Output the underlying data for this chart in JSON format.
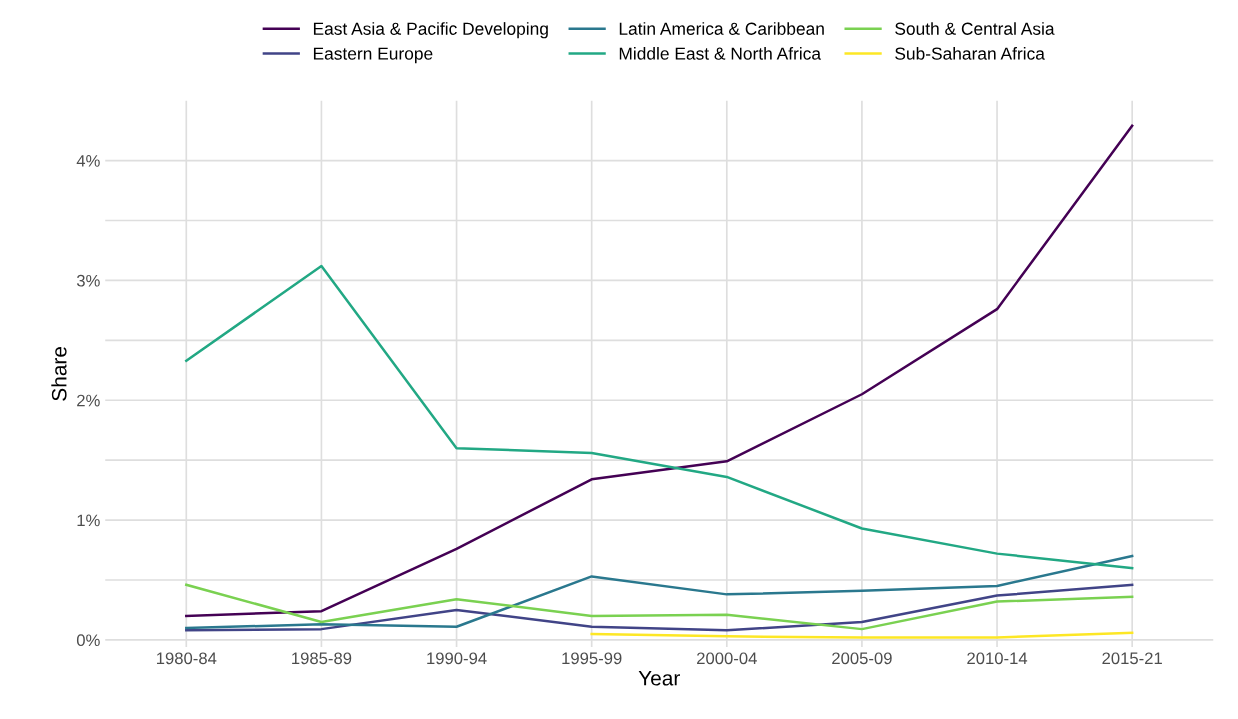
{
  "chart_data": {
    "type": "line",
    "xlabel": "Year",
    "ylabel": "Share",
    "categories": [
      "1980-84",
      "1985-89",
      "1990-94",
      "1995-99",
      "2000-04",
      "2005-09",
      "2010-14",
      "2015-21"
    ],
    "series": [
      {
        "name": "East Asia & Pacific Developing",
        "color": "#440154",
        "values": [
          0.2,
          0.24,
          0.76,
          1.34,
          1.49,
          2.05,
          2.76,
          4.29
        ]
      },
      {
        "name": "Eastern Europe",
        "color": "#414487",
        "values": [
          0.08,
          0.09,
          0.25,
          0.11,
          0.08,
          0.15,
          0.37,
          0.46
        ]
      },
      {
        "name": "Latin America & Caribbean",
        "color": "#2a788e",
        "values": [
          0.1,
          0.13,
          0.11,
          0.53,
          0.38,
          0.41,
          0.45,
          0.7
        ]
      },
      {
        "name": "Middle East & North Africa",
        "color": "#22a884",
        "values": [
          2.33,
          3.12,
          1.6,
          1.56,
          1.36,
          0.93,
          0.72,
          0.6
        ]
      },
      {
        "name": "South & Central Asia",
        "color": "#7ad151",
        "values": [
          0.46,
          0.15,
          0.34,
          0.2,
          0.21,
          0.09,
          0.32,
          0.36
        ]
      },
      {
        "name": "Sub-Saharan Africa",
        "color": "#fde725",
        "values": [
          null,
          null,
          null,
          0.05,
          0.03,
          0.02,
          0.02,
          0.06
        ]
      }
    ],
    "ylim": [
      -0.06,
      4.5
    ],
    "yticks": [
      {
        "value": 0,
        "label": "0%"
      },
      {
        "value": 0.5,
        "label": null
      },
      {
        "value": 1,
        "label": "1%"
      },
      {
        "value": 1.5,
        "label": null
      },
      {
        "value": 2,
        "label": "2%"
      },
      {
        "value": 2.5,
        "label": null
      },
      {
        "value": 3,
        "label": "3%"
      },
      {
        "value": 3.5,
        "label": null
      },
      {
        "value": 4,
        "label": "4%"
      }
    ],
    "grid": true,
    "legend": "top",
    "marker": "none",
    "line_style": "solid"
  }
}
